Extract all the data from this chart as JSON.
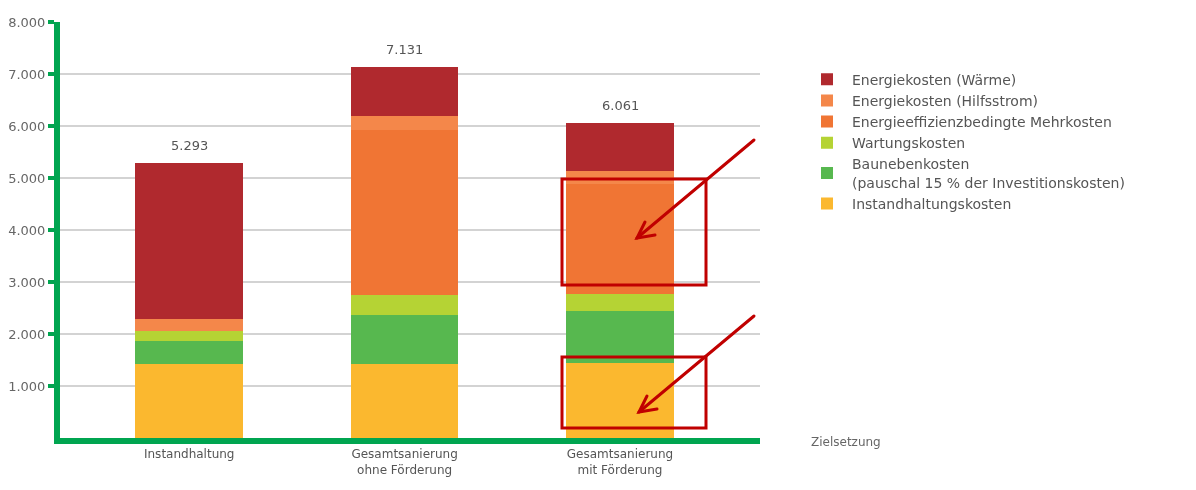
{
  "chart_data": {
    "type": "bar",
    "stacked": true,
    "categories": [
      "Instandhaltung",
      "Gesamtsanierung\nohne Förderung",
      "Gesamtsanierung\nmit Förderung"
    ],
    "series": [
      {
        "name": "Instandhaltungskosten",
        "color": "#fbb82f",
        "values": [
          1430,
          1430,
          1440
        ]
      },
      {
        "name": "Baunebenkosten\n(pauschal 15 % der Investitionskosten)",
        "color": "#57b84f",
        "values": [
          440,
          930,
          1000
        ]
      },
      {
        "name": "Wartungskosten",
        "color": "#b5d334",
        "values": [
          180,
          390,
          330
        ]
      },
      {
        "name": "Energieeffizienzbedingte Mehrkosten",
        "color": "#f07534",
        "values": [
          0,
          3180,
          2110
        ]
      },
      {
        "name": "Energiekosten (Hilfsstrom)",
        "color": "#f4874a",
        "values": [
          240,
          270,
          250
        ]
      },
      {
        "name": "Energiekosten (Wärme)",
        "color": "#b0292e",
        "values": [
          3000,
          930,
          930
        ]
      }
    ],
    "totals": [
      "5.293",
      "7.131",
      "6.061"
    ],
    "ylim": [
      0,
      8000
    ],
    "yticks": [
      {
        "value": 1000,
        "label": "1.000"
      },
      {
        "value": 2000,
        "label": "2.000"
      },
      {
        "value": 3000,
        "label": "3.000"
      },
      {
        "value": 4000,
        "label": "4.000"
      },
      {
        "value": 5000,
        "label": "5.000"
      },
      {
        "value": 6000,
        "label": "6.000"
      },
      {
        "value": 7000,
        "label": "7.000"
      },
      {
        "value": 8000,
        "label": "8.000"
      }
    ],
    "grid": "y",
    "legend": "right",
    "annotations": [
      "Zielsetzung"
    ]
  }
}
